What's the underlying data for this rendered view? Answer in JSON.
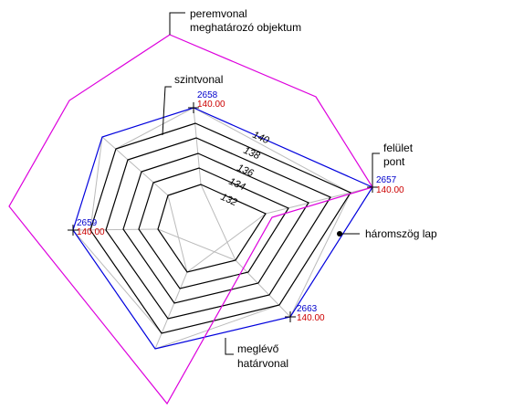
{
  "callouts": {
    "boundary_object": [
      "peremvonal",
      "meghatározó objektum"
    ],
    "contour": "szintvonal",
    "surface_point": [
      "felület",
      "pont"
    ],
    "triangle_face": "háromszög lap",
    "existing_boundary": [
      "meglévő",
      "határvonal"
    ]
  },
  "points": [
    {
      "number": "2658",
      "elevation": "140.00"
    },
    {
      "number": "2657",
      "elevation": "140.00"
    },
    {
      "number": "2663",
      "elevation": "140.00"
    },
    {
      "number": "2659",
      "elevation": "140.00"
    }
  ],
  "contour_labels": [
    "140",
    "138",
    "136",
    "134",
    "132"
  ]
}
